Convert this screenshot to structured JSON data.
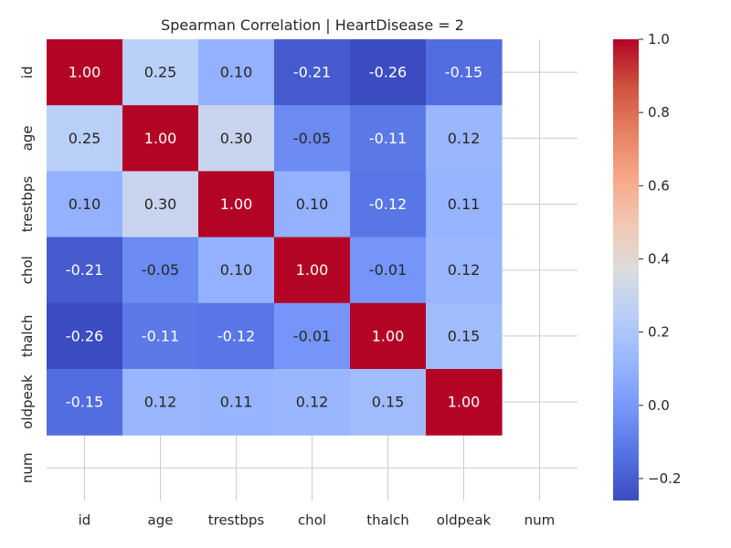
{
  "chart_data": {
    "type": "heatmap",
    "title": "Spearman Correlation | HeartDisease = 2",
    "x_labels": [
      "id",
      "age",
      "trestbps",
      "chol",
      "thalch",
      "oldpeak",
      "num"
    ],
    "y_labels": [
      "id",
      "age",
      "trestbps",
      "chol",
      "thalch",
      "oldpeak",
      "num"
    ],
    "matrix": [
      [
        1.0,
        0.25,
        0.1,
        -0.21,
        -0.26,
        -0.15,
        null
      ],
      [
        0.25,
        1.0,
        0.3,
        -0.05,
        -0.11,
        0.12,
        null
      ],
      [
        0.1,
        0.3,
        1.0,
        0.1,
        -0.12,
        0.11,
        null
      ],
      [
        -0.21,
        -0.05,
        0.1,
        1.0,
        -0.01,
        0.12,
        null
      ],
      [
        -0.26,
        -0.11,
        -0.12,
        -0.01,
        1.0,
        0.15,
        null
      ],
      [
        -0.15,
        0.12,
        0.11,
        0.12,
        0.15,
        1.0,
        null
      ],
      [
        null,
        null,
        null,
        null,
        null,
        null,
        null
      ]
    ],
    "colormap": "coolwarm",
    "color_range": [
      -0.26,
      1.0
    ],
    "colorbar_ticks": [
      -0.2,
      0.0,
      0.2,
      0.4,
      0.6,
      0.8,
      1.0
    ],
    "colorbar_tick_labels": [
      "−0.2",
      "0.0",
      "0.2",
      "0.4",
      "0.6",
      "0.8",
      "1.0"
    ],
    "grid": true
  }
}
